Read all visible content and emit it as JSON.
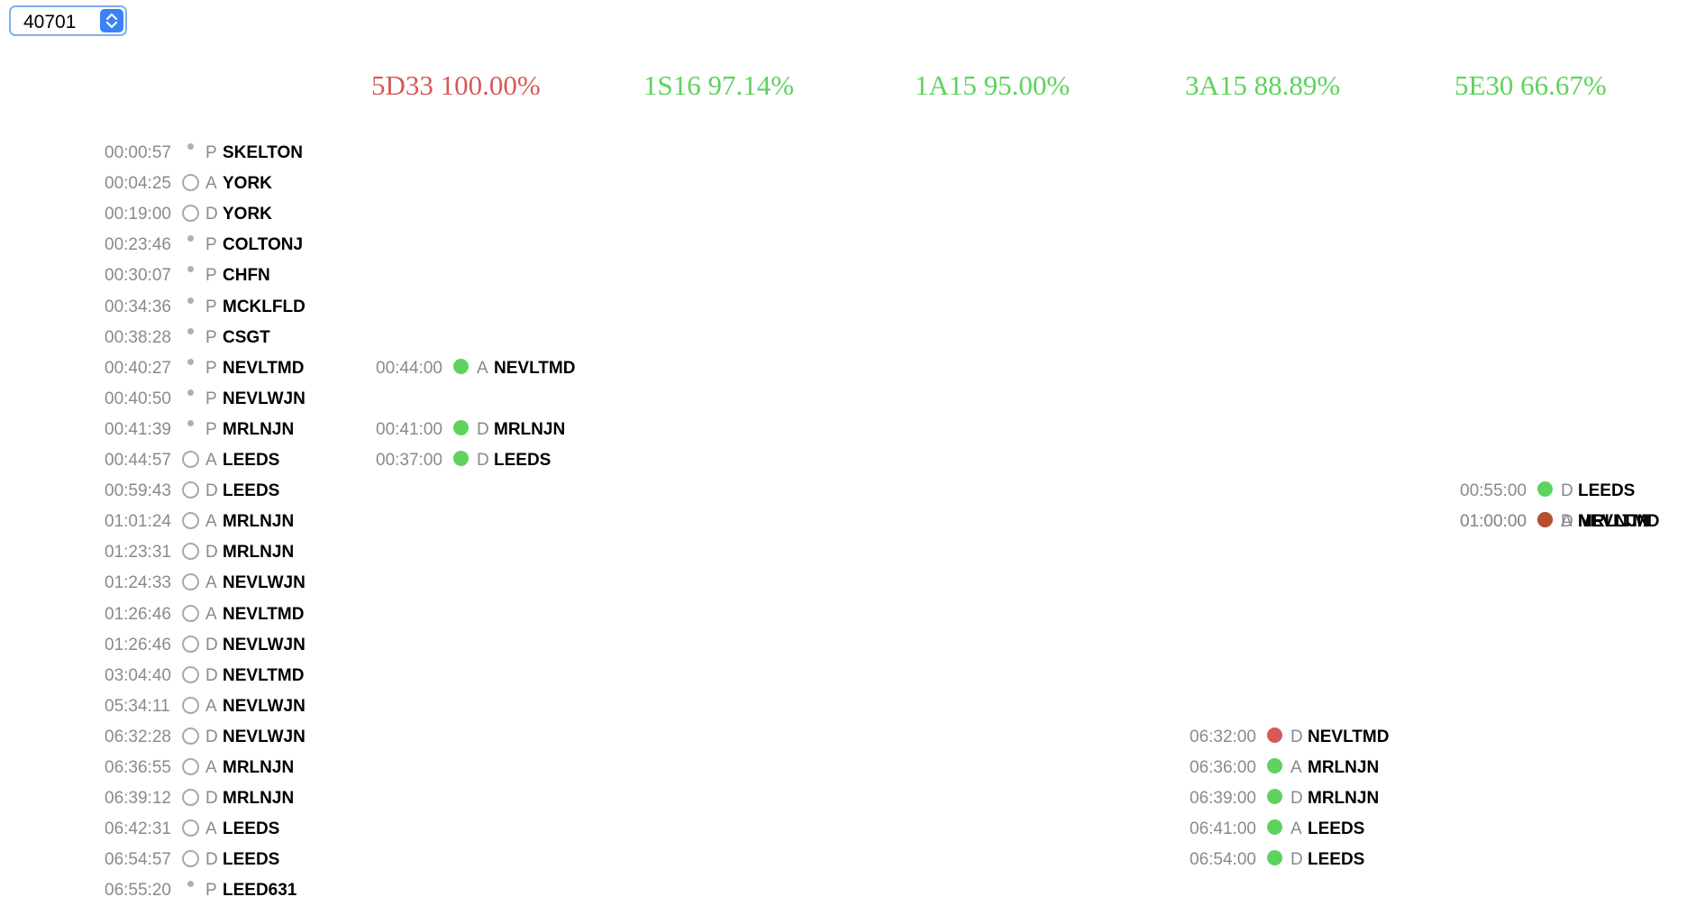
{
  "selector": {
    "value": "40701"
  },
  "colors": {
    "good": "#5dd35d",
    "bad": "#d65a5a",
    "late": "#b5502f"
  },
  "headers": [
    {
      "label": "5D33 100.00%",
      "color": "#d65a5a"
    },
    {
      "label": "1S16 97.14%",
      "color": "#5dd35d"
    },
    {
      "label": "1A15 95.00%",
      "color": "#5dd35d"
    },
    {
      "label": "3A15 88.89%",
      "color": "#5dd35d"
    },
    {
      "label": "5E30 66.67%",
      "color": "#5dd35d"
    }
  ],
  "actual_events": [
    {
      "time": "00:00:57",
      "type": "P",
      "location": "SKELTON"
    },
    {
      "time": "00:04:25",
      "type": "A",
      "location": "YORK"
    },
    {
      "time": "00:19:00",
      "type": "D",
      "location": "YORK"
    },
    {
      "time": "00:23:46",
      "type": "P",
      "location": "COLTONJ"
    },
    {
      "time": "00:30:07",
      "type": "P",
      "location": "CHFN"
    },
    {
      "time": "00:34:36",
      "type": "P",
      "location": "MCKLFLD"
    },
    {
      "time": "00:38:28",
      "type": "P",
      "location": "CSGT"
    },
    {
      "time": "00:40:27",
      "type": "P",
      "location": "NEVLTMD"
    },
    {
      "time": "00:40:50",
      "type": "P",
      "location": "NEVLWJN"
    },
    {
      "time": "00:41:39",
      "type": "P",
      "location": "MRLNJN"
    },
    {
      "time": "00:44:57",
      "type": "A",
      "location": "LEEDS"
    },
    {
      "time": "00:59:43",
      "type": "D",
      "location": "LEEDS"
    },
    {
      "time": "01:01:24",
      "type": "A",
      "location": "MRLNJN"
    },
    {
      "time": "01:23:31",
      "type": "D",
      "location": "MRLNJN"
    },
    {
      "time": "01:24:33",
      "type": "A",
      "location": "NEVLWJN"
    },
    {
      "time": "01:26:46",
      "type": "A",
      "location": "NEVLTMD"
    },
    {
      "time": "01:26:46",
      "type": "D",
      "location": "NEVLWJN"
    },
    {
      "time": "03:04:40",
      "type": "D",
      "location": "NEVLTMD"
    },
    {
      "time": "05:34:11",
      "type": "A",
      "location": "NEVLWJN"
    },
    {
      "time": "06:32:28",
      "type": "D",
      "location": "NEVLWJN"
    },
    {
      "time": "06:36:55",
      "type": "A",
      "location": "MRLNJN"
    },
    {
      "time": "06:39:12",
      "type": "D",
      "location": "MRLNJN"
    },
    {
      "time": "06:42:31",
      "type": "A",
      "location": "LEEDS"
    },
    {
      "time": "06:54:57",
      "type": "D",
      "location": "LEEDS"
    },
    {
      "time": "06:55:20",
      "type": "P",
      "location": "LEED631"
    }
  ],
  "matches": [
    {
      "column": 0,
      "row": 7,
      "time": "00:44:00",
      "type": "A",
      "location": "NEVLTMD",
      "status": "good"
    },
    {
      "column": 0,
      "row": 9,
      "time": "00:41:00",
      "type": "D",
      "location": "MRLNJN",
      "status": "good"
    },
    {
      "column": 0,
      "row": 10,
      "time": "00:37:00",
      "type": "D",
      "location": "LEEDS",
      "status": "good"
    },
    {
      "column": 4,
      "row": 11,
      "time": "00:55:00",
      "type": "D",
      "location": "LEEDS",
      "status": "good"
    },
    {
      "column": 4,
      "row": 12,
      "time": "01:00:00",
      "type": "A",
      "location": "NEVLTMD",
      "status": "late"
    },
    {
      "column": 4,
      "row": 12,
      "time": "01:00:00",
      "type": "D",
      "location": "MRLNJN",
      "status": "late"
    },
    {
      "column": 3,
      "row": 19,
      "time": "06:32:00",
      "type": "D",
      "location": "NEVLTMD",
      "status": "bad"
    },
    {
      "column": 3,
      "row": 20,
      "time": "06:36:00",
      "type": "A",
      "location": "MRLNJN",
      "status": "good"
    },
    {
      "column": 3,
      "row": 21,
      "time": "06:39:00",
      "type": "D",
      "location": "MRLNJN",
      "status": "good"
    },
    {
      "column": 3,
      "row": 22,
      "time": "06:41:00",
      "type": "A",
      "location": "LEEDS",
      "status": "good"
    },
    {
      "column": 3,
      "row": 23,
      "time": "06:54:00",
      "type": "D",
      "location": "LEEDS",
      "status": "good"
    }
  ]
}
